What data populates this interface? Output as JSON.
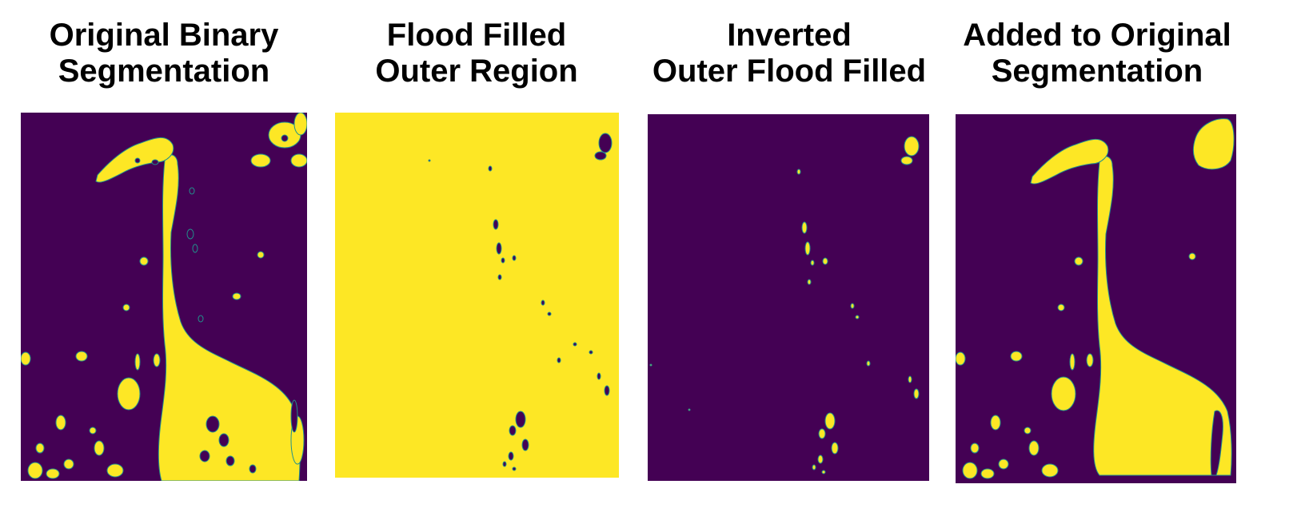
{
  "panels": [
    {
      "title_line1": "Original Binary",
      "title_line2": "Segmentation",
      "background_color": "#440154",
      "mask_color": "#fde725",
      "edge_color": "#21918c"
    },
    {
      "title_line1": "Flood Filled",
      "title_line2": "Outer Region",
      "background_color": "#fde725",
      "mask_color": "#440154",
      "edge_color": "#21918c"
    },
    {
      "title_line1": "Inverted",
      "title_line2": "Outer Flood Filled",
      "background_color": "#440154",
      "mask_color": "#fde725",
      "edge_color": "#21918c"
    },
    {
      "title_line1": "Added to Original",
      "title_line2": "Segmentation",
      "background_color": "#440154",
      "mask_color": "#fde725",
      "edge_color": "#21918c"
    }
  ]
}
